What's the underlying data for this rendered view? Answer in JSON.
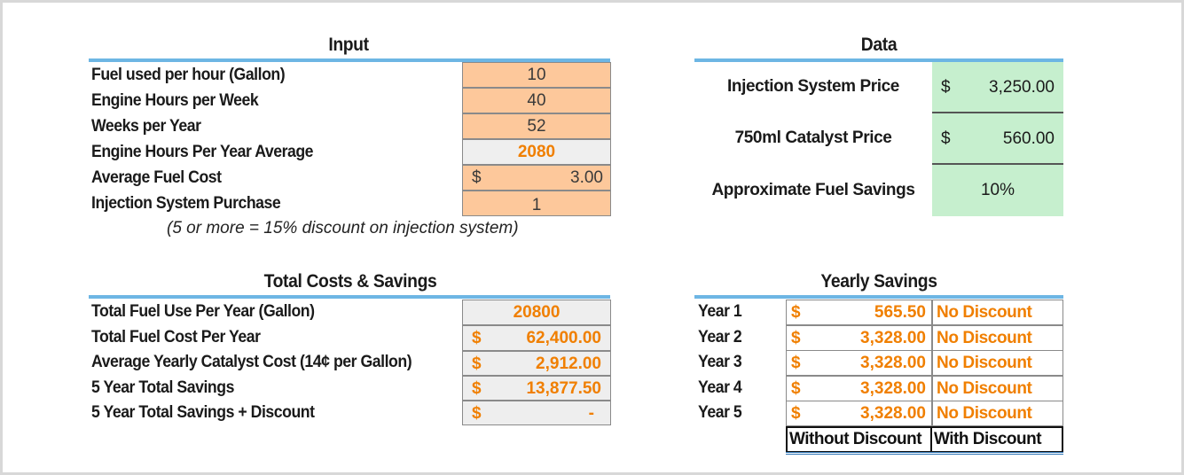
{
  "currency": "$",
  "input": {
    "title": "Input",
    "rows": [
      {
        "label": "Fuel used per hour (Gallon)",
        "value": "10"
      },
      {
        "label": "Engine Hours per Week",
        "value": "40"
      },
      {
        "label": "Weeks per Year",
        "value": "52"
      },
      {
        "label": "Engine Hours Per Year Average",
        "value": "2080"
      },
      {
        "label": "Average Fuel Cost",
        "value": "3.00"
      },
      {
        "label": "Injection System Purchase",
        "value": "1"
      }
    ],
    "note": "(5 or more = 15% discount on injection system)"
  },
  "data": {
    "title": "Data",
    "rows": [
      {
        "label": "Injection System Price",
        "value": "3,250.00"
      },
      {
        "label": "750ml Catalyst Price",
        "value": "560.00"
      },
      {
        "label": "Approximate Fuel Savings",
        "value": "10%"
      }
    ]
  },
  "totals": {
    "title": "Total Costs & Savings",
    "rows": [
      {
        "label": "Total Fuel Use Per Year (Gallon)",
        "value": "20800"
      },
      {
        "label": "Total Fuel Cost Per Year",
        "value": "62,400.00"
      },
      {
        "label": "Average Yearly Catalyst Cost (14¢ per Gallon)",
        "value": "2,912.00"
      },
      {
        "label": "5 Year Total Savings",
        "value": "13,877.50"
      },
      {
        "label": "5 Year Total Savings + Discount",
        "value": "-"
      }
    ]
  },
  "yearly": {
    "title": "Yearly Savings",
    "rows": [
      {
        "year": "Year 1",
        "amount": "565.50",
        "status": "No Discount"
      },
      {
        "year": "Year 2",
        "amount": "3,328.00",
        "status": "No Discount"
      },
      {
        "year": "Year 3",
        "amount": "3,328.00",
        "status": "No Discount"
      },
      {
        "year": "Year 4",
        "amount": "3,328.00",
        "status": "No Discount"
      },
      {
        "year": "Year 5",
        "amount": "3,328.00",
        "status": "No Discount"
      }
    ],
    "legend_without": "Without Discount",
    "legend_with": "With Discount"
  }
}
